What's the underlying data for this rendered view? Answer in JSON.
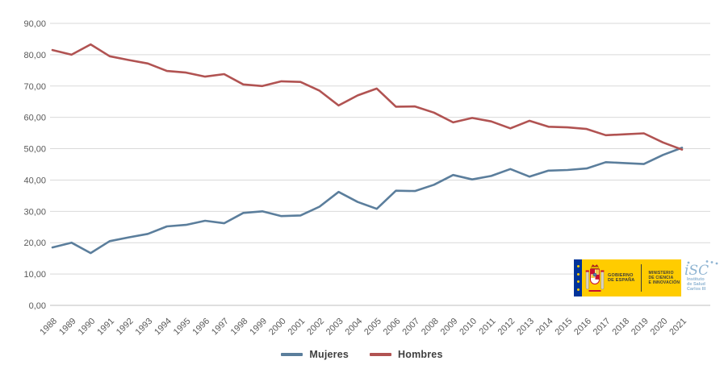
{
  "chart_data": {
    "type": "line",
    "x": [
      1988,
      1989,
      1990,
      1991,
      1992,
      1993,
      1994,
      1995,
      1996,
      1997,
      1998,
      1999,
      2000,
      2001,
      2002,
      2003,
      2004,
      2005,
      2006,
      2007,
      2008,
      2009,
      2010,
      2011,
      2012,
      2013,
      2014,
      2015,
      2016,
      2017,
      2018,
      2019,
      2020,
      2021
    ],
    "series": [
      {
        "name": "Mujeres",
        "color": "#5B7E9C",
        "values": [
          18.5,
          20.0,
          16.7,
          20.5,
          21.7,
          22.8,
          25.2,
          25.7,
          27.0,
          26.2,
          29.5,
          30.0,
          28.5,
          28.7,
          31.5,
          36.2,
          33.0,
          30.8,
          36.6,
          36.5,
          38.5,
          41.6,
          40.2,
          41.3,
          43.5,
          41.1,
          43.0,
          43.2,
          43.7,
          45.7,
          45.4,
          45.1,
          48.0,
          50.3
        ]
      },
      {
        "name": "Hombres",
        "color": "#B15352",
        "values": [
          81.5,
          80.0,
          83.3,
          79.5,
          78.3,
          77.2,
          74.8,
          74.3,
          73.0,
          73.8,
          70.5,
          70.0,
          71.5,
          71.3,
          68.5,
          63.8,
          67.0,
          69.2,
          63.4,
          63.5,
          61.5,
          58.4,
          59.8,
          58.7,
          56.5,
          58.9,
          57.0,
          56.8,
          56.3,
          54.3,
          54.6,
          54.9,
          52.0,
          49.7
        ]
      }
    ],
    "title": "",
    "xlabel": "",
    "ylabel": "",
    "ylim": [
      0,
      90
    ],
    "ytick_step": 10,
    "ytick_labels": [
      "0,00",
      "10,00",
      "20,00",
      "30,00",
      "40,00",
      "50,00",
      "60,00",
      "70,00",
      "80,00",
      "90,00"
    ],
    "grid": true,
    "legend_position": "bottom-center"
  },
  "style": {
    "grid_color": "#D9D9D9",
    "axis_color": "#BFBFBF",
    "tick_text_color": "#595959",
    "line_width": 2.6
  },
  "legend": {
    "items": [
      {
        "label": "Mujeres",
        "color": "#5B7E9C"
      },
      {
        "label": "Hombres",
        "color": "#B15352"
      }
    ]
  },
  "logo": {
    "gobierno": {
      "line1": "GOBIERNO",
      "line2": "DE ESPAÑA"
    },
    "ministerio": {
      "line1": "MINISTERIO",
      "line2": "DE CIENCIA",
      "line3": "E INNOVACIÓN"
    },
    "instituto": {
      "line1": "Instituto",
      "line2": "de Salud",
      "line3": "Carlos III",
      "mark": "iSC"
    },
    "colors": {
      "yellow": "#FFCC00",
      "eu_blue": "#003399",
      "star_yellow": "#FFCC00",
      "text_dark": "#3C3C3B",
      "divider": "#3C3C3B",
      "isciii_blue": "#8FB4D2"
    }
  }
}
